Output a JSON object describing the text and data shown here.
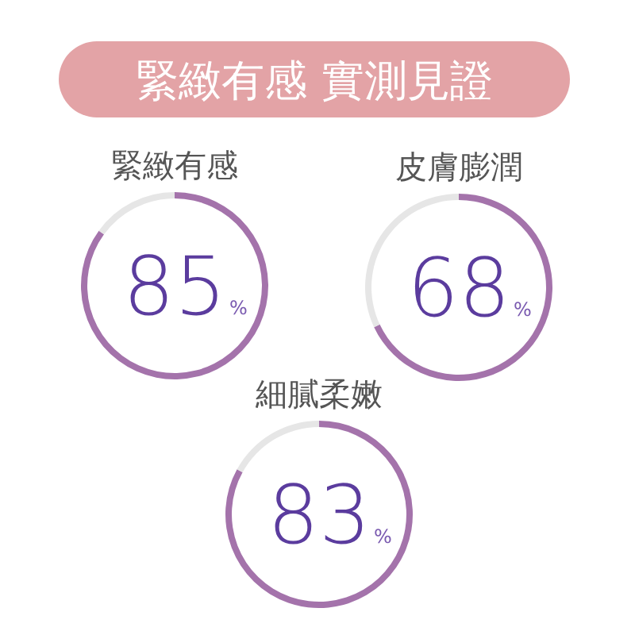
{
  "chart_data": [
    {
      "type": "other",
      "title": "緊緻有感 實測見證"
    },
    {
      "type": "donut",
      "title": "緊緻有感",
      "categories": [
        null,
        null
      ],
      "values": [
        85,
        15
      ],
      "colors": [
        "#a473ab",
        "#e6e6e6"
      ],
      "value_labels": [
        "85%",
        null
      ]
    },
    {
      "type": "donut",
      "title": "皮膚膨潤",
      "categories": [
        null,
        null
      ],
      "values": [
        68,
        32
      ],
      "colors": [
        "#a473ab",
        "#e6e6e6"
      ],
      "value_labels": [
        "68%",
        null
      ]
    },
    {
      "type": "donut",
      "title": "細膩柔嫩",
      "categories": [
        null,
        null
      ],
      "values": [
        83,
        17
      ],
      "colors": [
        "#a473ab",
        "#e6e6e6"
      ],
      "value_labels": [
        "83%",
        null
      ]
    }
  ]
}
